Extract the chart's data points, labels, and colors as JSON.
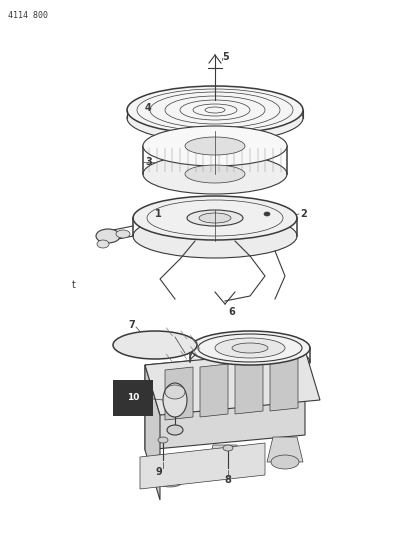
{
  "title": "4114 800",
  "bg": "#ffffff",
  "lc": "#3a3a3a",
  "lc2": "#555555",
  "fig_w": 4.08,
  "fig_h": 5.33,
  "dpi": 100
}
